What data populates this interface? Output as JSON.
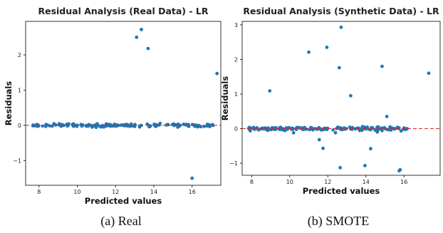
{
  "chart_data": [
    {
      "type": "scatter",
      "title": "Residual Analysis (Real Data) - LR",
      "xlabel": "Predicted values",
      "ylabel": "Residuals",
      "caption": "(a)  Real",
      "xlim": [
        7.3,
        17.5
      ],
      "ylim": [
        -1.7,
        2.95
      ],
      "xticks": [
        8,
        10,
        12,
        14,
        16
      ],
      "yticks": [
        -1,
        0,
        1,
        2
      ],
      "reference_line": {
        "y": 0,
        "style": "dashed",
        "color": "#d62728"
      },
      "marker_color": "#1f77b4",
      "grid": false,
      "outliers": [
        {
          "x": 13.1,
          "y": 2.5
        },
        {
          "x": 13.35,
          "y": 2.72
        },
        {
          "x": 13.7,
          "y": 2.18
        },
        {
          "x": 17.3,
          "y": 1.47
        },
        {
          "x": 16.0,
          "y": -1.5
        }
      ],
      "cluster": {
        "x_range": [
          7.6,
          17.1
        ],
        "y_spread": 0.05,
        "count": 170
      }
    },
    {
      "type": "scatter",
      "title": "Residual Analysis (Synthetic Data) - LR",
      "xlabel": "Predicted values",
      "ylabel": "Residuals",
      "caption": "(b)  SMOTE",
      "xlim": [
        7.5,
        17.9
      ],
      "ylim": [
        -1.35,
        3.1
      ],
      "xticks": [
        8,
        10,
        12,
        14,
        16
      ],
      "yticks": [
        -1,
        0,
        1,
        2,
        3
      ],
      "reference_line": {
        "y": 0,
        "style": "dashed",
        "color": "#d62728"
      },
      "marker_color": "#1f77b4",
      "grid": false,
      "outliers": [
        {
          "x": 8.95,
          "y": 1.09
        },
        {
          "x": 11.0,
          "y": 2.21
        },
        {
          "x": 11.95,
          "y": 2.35
        },
        {
          "x": 12.6,
          "y": 1.76
        },
        {
          "x": 12.7,
          "y": 2.93
        },
        {
          "x": 13.2,
          "y": 0.95
        },
        {
          "x": 14.85,
          "y": 1.8
        },
        {
          "x": 15.1,
          "y": 0.35
        },
        {
          "x": 17.3,
          "y": 1.6
        },
        {
          "x": 12.65,
          "y": -1.13
        },
        {
          "x": 13.95,
          "y": -1.07
        },
        {
          "x": 15.75,
          "y": -1.22
        },
        {
          "x": 15.8,
          "y": -1.19
        },
        {
          "x": 11.75,
          "y": -0.57
        },
        {
          "x": 11.55,
          "y": -0.32
        },
        {
          "x": 14.25,
          "y": -0.58
        },
        {
          "x": 12.4,
          "y": -0.12
        },
        {
          "x": 10.2,
          "y": -0.12
        },
        {
          "x": 14.6,
          "y": -0.1
        }
      ],
      "cluster": {
        "x_range": [
          7.8,
          16.2
        ],
        "y_spread": 0.05,
        "count": 190
      }
    }
  ]
}
